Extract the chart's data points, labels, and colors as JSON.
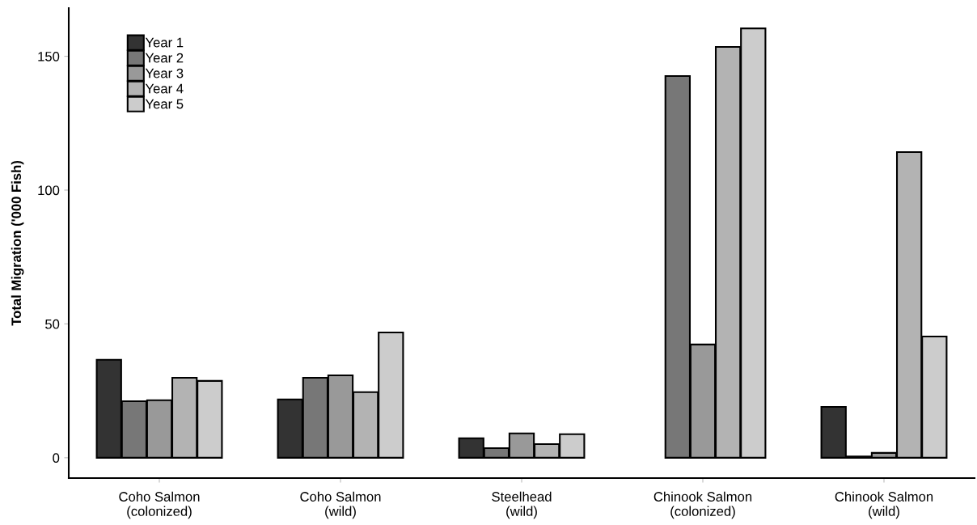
{
  "chart_data": {
    "type": "bar",
    "ylabel": "Total Migration ('000 Fish)",
    "categories": [
      "Coho Salmon\n(colonized)",
      "Coho Salmon\n(wild)",
      "Steelhead\n(wild)",
      "Chinook Salmon\n(colonized)",
      "Chinook Salmon\n(wild)"
    ],
    "series": [
      {
        "name": "Year 1",
        "color": "#333333",
        "values": [
          36.6,
          21.8,
          7.3,
          null,
          19.0
        ]
      },
      {
        "name": "Year 2",
        "color": "#777777",
        "values": [
          21.1,
          29.9,
          3.6,
          142.6,
          0.5
        ]
      },
      {
        "name": "Year 3",
        "color": "#999999",
        "values": [
          21.5,
          30.8,
          9.1,
          42.3,
          1.8
        ]
      },
      {
        "name": "Year 4",
        "color": "#b3b3b3",
        "values": [
          29.9,
          24.5,
          5.1,
          153.5,
          114.2
        ]
      },
      {
        "name": "Year 5",
        "color": "#cccccc",
        "values": [
          28.7,
          46.8,
          8.8,
          160.4,
          45.3
        ]
      }
    ],
    "ylim": [
      -7.6,
      168
    ],
    "yticks": [
      0,
      50,
      100,
      150
    ],
    "grid": false,
    "legend": "top left"
  }
}
